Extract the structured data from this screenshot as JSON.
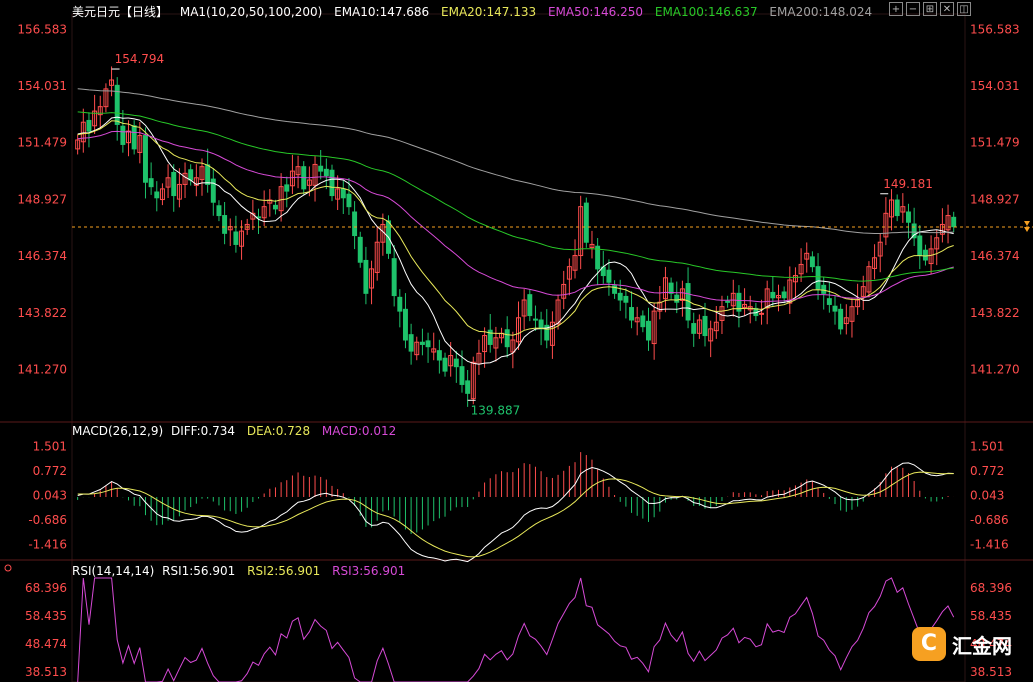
{
  "header": {
    "symbol": "美元日元【日线】",
    "ma": "MA1(10,20,50,100,200)",
    "ema10": "EMA10:147.686",
    "ema20": "EMA20:147.133",
    "ema50": "EMA50:146.250",
    "ema100": "EMA100:146.637",
    "ema200": "EMA200:148.024"
  },
  "macd_header": {
    "name": "MACD(26,12,9)",
    "diff": "DIFF:0.734",
    "dea": "DEA:0.728",
    "macd": "MACD:0.012"
  },
  "rsi_header": {
    "name": "RSI(14,14,14)",
    "rsi1": "RSI1:56.901",
    "rsi2": "RSI2:56.901",
    "rsi3": "RSI3:56.901"
  },
  "toolbar": [
    "+",
    "−",
    "⊞",
    "✕",
    "◫"
  ],
  "logo": {
    "mark": "C",
    "text": "汇金网"
  },
  "colors": {
    "up": "#ff4d4d",
    "down": "#1ec26b",
    "ma": "#ffffff",
    "ema20": "#e8e85a",
    "ema50": "#d64ad6",
    "ema100": "#28c828",
    "ema200": "#a0a0a0",
    "diff": "#ffffff",
    "dea": "#e8e85a",
    "rsi": "#d64ad6",
    "price_line": "#f6a021"
  },
  "chart_data": [
    {
      "type": "candlestick",
      "yticks": [
        "156.583",
        "154.031",
        "151.479",
        "148.927",
        "146.374",
        "143.822",
        "141.270"
      ],
      "ylim": [
        139.0,
        157.0
      ],
      "current_price": 147.686,
      "annotations": [
        {
          "label": "154.794",
          "index": 6,
          "value": 154.794
        },
        {
          "label": "139.887",
          "index": 69,
          "value": 139.887
        },
        {
          "label": "149.181",
          "index": 142,
          "value": 149.181
        }
      ],
      "close": [
        151.6,
        152.4,
        152.0,
        152.9,
        153.1,
        153.9,
        154.3,
        152.3,
        151.4,
        152.0,
        151.2,
        151.8,
        149.7,
        149.5,
        149.0,
        149.4,
        149.9,
        149.1,
        149.6,
        150.1,
        149.8,
        149.9,
        150.4,
        149.6,
        148.8,
        148.2,
        147.4,
        147.7,
        146.9,
        147.5,
        147.8,
        148.3,
        148.1,
        148.6,
        148.9,
        148.5,
        149.5,
        149.3,
        150.2,
        150.4,
        149.4,
        149.8,
        150.5,
        150.2,
        150.0,
        149.1,
        149.4,
        149.0,
        148.6,
        147.3,
        146.1,
        144.7,
        145.8,
        147.0,
        147.8,
        146.5,
        144.6,
        143.9,
        142.6,
        142.1,
        142.5,
        142.4,
        142.3,
        142.2,
        141.7,
        141.2,
        141.9,
        141.4,
        140.6,
        140.2,
        141.6,
        142.0,
        142.8,
        142.4,
        142.7,
        142.9,
        142.3,
        142.6,
        143.6,
        144.4,
        143.7,
        143.5,
        143.1,
        142.6,
        143.4,
        144.4,
        145.1,
        145.9,
        146.4,
        148.6,
        147.0,
        146.9,
        145.8,
        145.5,
        145.2,
        144.7,
        144.4,
        144.3,
        143.5,
        143.6,
        143.2,
        142.6,
        143.9,
        144.3,
        145.4,
        144.7,
        144.3,
        144.9,
        143.5,
        142.9,
        143.5,
        142.8,
        143.1,
        143.4,
        144.1,
        144.3,
        144.7,
        143.9,
        144.2,
        144.1,
        143.7,
        143.8,
        144.9,
        144.5,
        144.6,
        144.5,
        145.3,
        145.5,
        146.0,
        146.5,
        145.9,
        144.9,
        144.7,
        144.2,
        143.9,
        143.1,
        143.6,
        144.1,
        144.4,
        145.0,
        145.9,
        146.3,
        147.0,
        148.3,
        148.9,
        148.2,
        148.6,
        147.9,
        147.2,
        146.4,
        146.2,
        146.7,
        147.2,
        147.8,
        148.2,
        147.7
      ]
    },
    {
      "type": "macd",
      "yticks": [
        "1.501",
        "0.772",
        "0.043",
        "-0.686",
        "-1.416"
      ],
      "ylim": [
        -1.75,
        1.75
      ]
    },
    {
      "type": "line",
      "name": "RSI",
      "yticks": [
        "68.396",
        "58.435",
        "48.474",
        "38.513"
      ],
      "ylim": [
        35.0,
        72.0
      ]
    }
  ]
}
